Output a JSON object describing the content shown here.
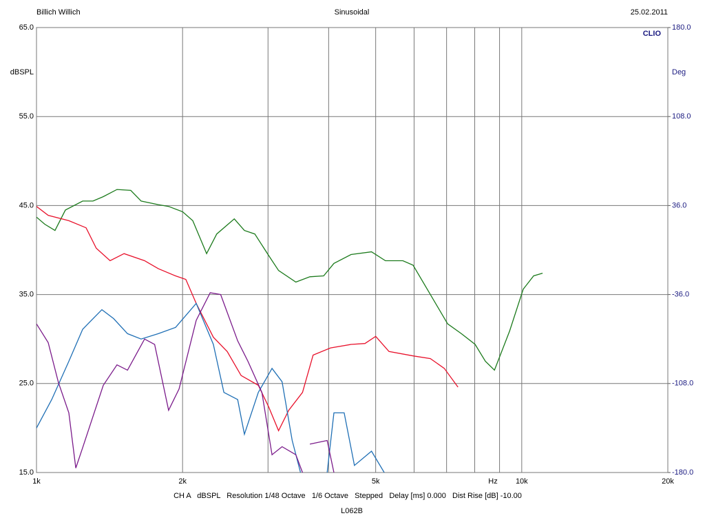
{
  "chart_data": {
    "type": "line",
    "header_left": "Billich Willich",
    "title": "Sinusoidal",
    "date": "25.02.2011",
    "brand": "CLIO",
    "ylabel": "dBSPL",
    "y2label": "Deg",
    "xlabel": "Hz",
    "footer": "CH A   dBSPL   Resolution 1/48 Octave   1/6 Octave   Stepped   Delay [ms] 0.000   Dist Rise [dB] -10.00",
    "subfooter": "L062B",
    "log_x": true,
    "grid": true,
    "xlim": [
      1000,
      20000
    ],
    "xticks": [
      {
        "value": 1000,
        "label": "1k"
      },
      {
        "value": 2000,
        "label": "2k"
      },
      {
        "value": 5000,
        "label": "5k"
      },
      {
        "value": 10000,
        "label": "10k"
      },
      {
        "value": 20000,
        "label": "20k"
      }
    ],
    "xminor": [
      3000,
      4000,
      6000,
      7000,
      8000,
      9000
    ],
    "ylim": [
      15,
      65
    ],
    "yticks": [
      {
        "value": 15,
        "label": "15.0"
      },
      {
        "value": 25,
        "label": "25.0"
      },
      {
        "value": 35,
        "label": "35.0"
      },
      {
        "value": 45,
        "label": "45.0"
      },
      {
        "value": 55,
        "label": "55.0"
      },
      {
        "value": 65,
        "label": "65.0"
      }
    ],
    "y2lim": [
      -180,
      180
    ],
    "y2ticks": [
      {
        "value": -180,
        "label": "-180.0"
      },
      {
        "value": -108,
        "label": "-108.0"
      },
      {
        "value": -36,
        "label": "-36.0"
      },
      {
        "value": 36,
        "label": "36.0"
      },
      {
        "value": 108,
        "label": "108.0"
      },
      {
        "value": 180,
        "label": "180.0"
      }
    ],
    "series": [
      {
        "color": "#1b7a1b",
        "x": [
          1000,
          1040,
          1092,
          1147,
          1245,
          1307,
          1373,
          1465,
          1564,
          1643,
          1783,
          1872,
          2000,
          2099,
          2242,
          2352,
          2556,
          2682,
          2818,
          3000,
          3154,
          3423,
          3659,
          3906,
          4101,
          4449,
          4902,
          5237,
          5687,
          5972,
          6482,
          7036,
          7509,
          8015,
          8415,
          8787,
          9441,
          10070,
          10582,
          11040
        ],
        "values": [
          43.7,
          42.9,
          42.2,
          44.5,
          45.5,
          45.5,
          46.0,
          46.8,
          46.7,
          45.5,
          45.1,
          44.9,
          44.3,
          43.3,
          39.6,
          41.8,
          43.5,
          42.2,
          41.8,
          39.5,
          37.7,
          36.4,
          37.0,
          37.1,
          38.5,
          39.5,
          39.8,
          38.8,
          38.8,
          38.3,
          35.0,
          31.7,
          30.6,
          29.4,
          27.5,
          26.5,
          30.9,
          35.6,
          37.1,
          37.4
        ]
      },
      {
        "color": "#e8102a",
        "x": [
          1000,
          1057,
          1166,
          1265,
          1328,
          1418,
          1515,
          1670,
          1783,
          1934,
          2031,
          2134,
          2315,
          2472,
          2640,
          2865,
          3008,
          3154,
          3310,
          3534,
          3716,
          4036,
          4449,
          4752,
          5000,
          5326,
          5972,
          6482,
          6925,
          7390
        ],
        "values": [
          44.9,
          43.9,
          43.3,
          42.5,
          40.2,
          38.8,
          39.6,
          38.8,
          37.9,
          37.1,
          36.7,
          34.0,
          30.2,
          28.6,
          25.9,
          24.8,
          22.4,
          19.7,
          22.0,
          24.0,
          28.2,
          29.0,
          29.4,
          29.5,
          30.3,
          28.6,
          28.1,
          27.8,
          26.7,
          24.6
        ]
      },
      {
        "color": "#1f6fb5",
        "x": [
          1000,
          1030,
          1075,
          1166,
          1245,
          1364,
          1442,
          1540,
          1643,
          1783,
          1934,
          2134,
          2315,
          2433,
          2598,
          2682,
          2865,
          3058,
          3207,
          3365,
          3500,
          null,
          3972,
          4101,
          4306,
          4521,
          4902,
          5207
        ],
        "values": [
          20.0,
          21.3,
          23.2,
          27.5,
          31.1,
          33.3,
          32.3,
          30.6,
          30.0,
          30.6,
          31.3,
          34.0,
          29.4,
          24.0,
          23.2,
          19.3,
          24.0,
          26.7,
          25.2,
          18.6,
          15.0,
          null,
          15.0,
          21.7,
          21.7,
          15.8,
          17.4,
          15.0
        ]
      },
      {
        "color": "#7a1a8a",
        "x": [
          1000,
          1057,
          1110,
          1166,
          1205,
          1245,
          1373,
          1465,
          1540,
          1670,
          1752,
          1872,
          1967,
          2134,
          2280,
          2396,
          2598,
          2727,
          2914,
          3058,
          3207,
          3423,
          3534,
          null,
          3659,
          3972,
          4101
        ],
        "values": [
          31.7,
          29.6,
          25.1,
          21.7,
          15.5,
          17.8,
          24.8,
          27.1,
          26.5,
          30.0,
          29.4,
          22.0,
          24.4,
          32.1,
          35.2,
          35.0,
          29.8,
          27.5,
          24.0,
          17.0,
          17.9,
          17.0,
          15.0,
          null,
          18.2,
          18.6,
          15.0
        ]
      }
    ]
  }
}
